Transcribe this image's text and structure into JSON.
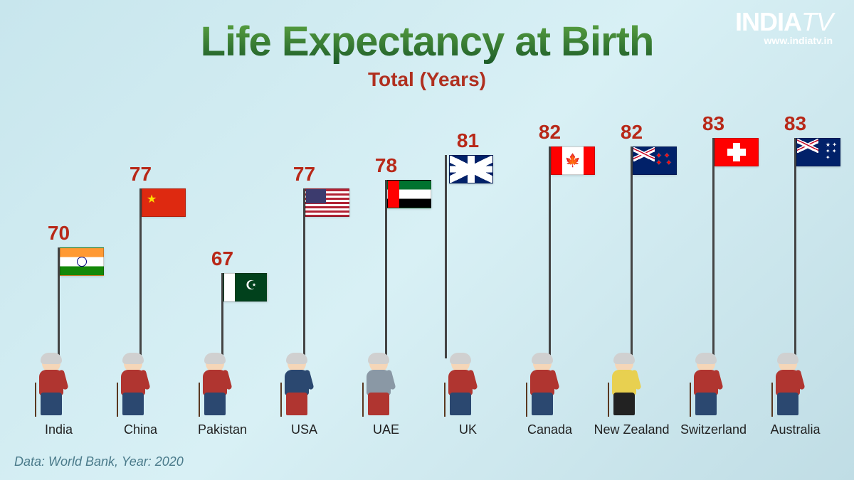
{
  "logo": {
    "brand": "INDIA",
    "suffix": "TV",
    "url": "www.indiatv.in"
  },
  "title": "Life Expectancy at Birth",
  "subtitle": "Total (Years)",
  "source": "Data: World Bank, Year: 2020",
  "chart": {
    "type": "bar",
    "value_color": "#b82818",
    "value_fontsize": 28,
    "label_fontsize": 18,
    "min_pole": 120,
    "max_pole": 310,
    "min_value": 67,
    "max_value": 83,
    "countries": [
      {
        "name": "India",
        "value": 70,
        "flag_class": "flag-india",
        "shirt": "#b03530",
        "pants": "#2b4870"
      },
      {
        "name": "China",
        "value": 77,
        "flag_class": "flag-china",
        "shirt": "#b03530",
        "pants": "#2b4870"
      },
      {
        "name": "Pakistan",
        "value": 67,
        "flag_class": "flag-pakistan",
        "shirt": "#b03530",
        "pants": "#2b4870"
      },
      {
        "name": "USA",
        "value": 77,
        "flag_class": "flag-usa",
        "shirt": "#2b4870",
        "pants": "#b03530"
      },
      {
        "name": "UAE",
        "value": 78,
        "flag_class": "flag-uae",
        "shirt": "#8a98a5",
        "pants": "#b03530"
      },
      {
        "name": "UK",
        "value": 81,
        "flag_class": "flag-uk",
        "shirt": "#b03530",
        "pants": "#2b4870"
      },
      {
        "name": "Canada",
        "value": 82,
        "flag_class": "flag-canada",
        "shirt": "#b03530",
        "pants": "#2b4870"
      },
      {
        "name": "New Zealand",
        "value": 82,
        "flag_class": "flag-nz",
        "shirt": "#e8d050",
        "pants": "#222"
      },
      {
        "name": "Switzerland",
        "value": 83,
        "flag_class": "flag-swiss",
        "shirt": "#b03530",
        "pants": "#2b4870"
      },
      {
        "name": "Australia",
        "value": 83,
        "flag_class": "flag-aus",
        "shirt": "#b03530",
        "pants": "#2b4870"
      }
    ]
  }
}
